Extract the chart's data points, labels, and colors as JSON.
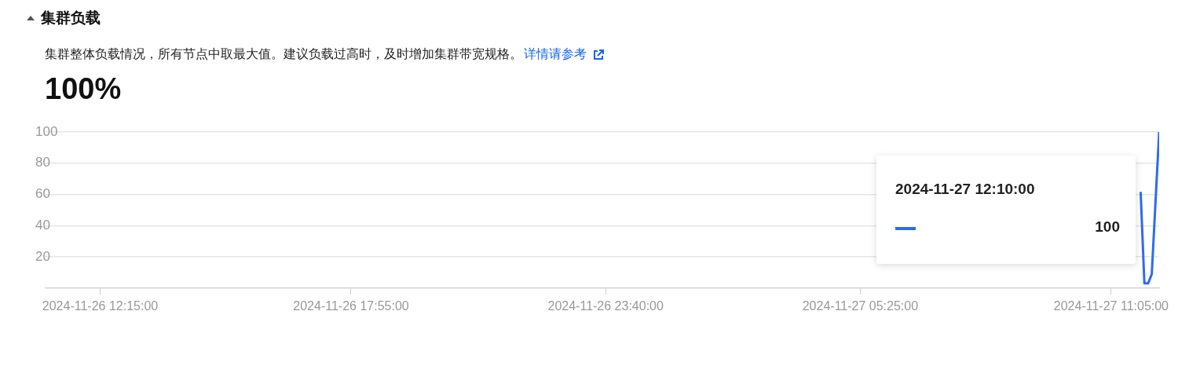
{
  "chart_data": {
    "type": "line",
    "title": "集群负载",
    "subtitle": "集群整体负载情况，所有节点中取最大值。建议负载过高时，及时增加集群带宽规格。",
    "annotations": [
      "详情请参考",
      "100%",
      "2024-11-27 12:10:00",
      "100"
    ],
    "x": [
      "2024-11-27T11:45",
      "2024-11-27T11:50",
      "2024-11-27T11:55",
      "2024-11-27T12:00",
      "2024-11-27T12:10"
    ],
    "series": [
      {
        "color": "#2f6bf0",
        "values": [
          61,
          3,
          3,
          9,
          100
        ]
      }
    ],
    "xlim": [
      "2024-11-26T11:00",
      "2024-11-27T12:10"
    ],
    "xticks": [
      {
        "value": "2024-11-26T12:15",
        "label": "2024-11-26 12:15:00"
      },
      {
        "value": "2024-11-26T17:55",
        "label": "2024-11-26 17:55:00"
      },
      {
        "value": "2024-11-26T23:40",
        "label": "2024-11-26 23:40:00"
      },
      {
        "value": "2024-11-27T05:25",
        "label": "2024-11-27 05:25:00"
      },
      {
        "value": "2024-11-27T11:05",
        "label": "2024-11-27 11:05:00"
      }
    ],
    "ylim": [
      0,
      100
    ],
    "yticks": [
      {
        "value": 0,
        "label": null
      },
      20,
      40,
      60,
      80,
      100
    ],
    "grid": "y",
    "legend": false,
    "marker": "none",
    "line_style": "solid"
  }
}
